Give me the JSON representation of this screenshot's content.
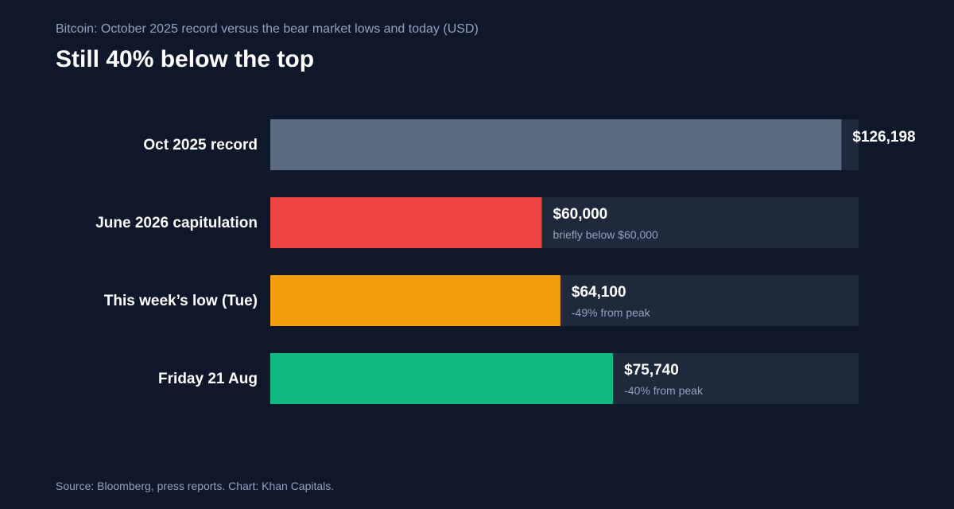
{
  "header": {
    "subtitle": "Bitcoin: October 2025 record versus the bear market lows and today (USD)",
    "title": "Still 40% below the top"
  },
  "footer": {
    "source": "Source: Bloomberg, press reports. Chart: Khan Capitals."
  },
  "colors": {
    "background": "#0f172a",
    "track": "#1e293b",
    "record": "#5b6b7f",
    "capitulation": "#ef4444",
    "weekly_low": "#f59e0b",
    "today": "#10b981"
  },
  "chart_data": {
    "type": "bar",
    "orientation": "horizontal",
    "xlim": [
      0,
      130000
    ],
    "categories": [
      "Oct 2025 record",
      "June 2026 capitulation",
      "This week’s low (Tue)",
      "Friday 21 Aug"
    ],
    "values": [
      126198,
      60000,
      64100,
      75740
    ],
    "value_labels": [
      "$126,198",
      "$60,000",
      "$64,100",
      "$75,740"
    ],
    "annotations": [
      "",
      "briefly below $60,000",
      "-49% from peak",
      "-40% from peak"
    ],
    "bar_colors": [
      "#5b6b7f",
      "#ef4444",
      "#f59e0b",
      "#10b981"
    ],
    "grid": false
  }
}
